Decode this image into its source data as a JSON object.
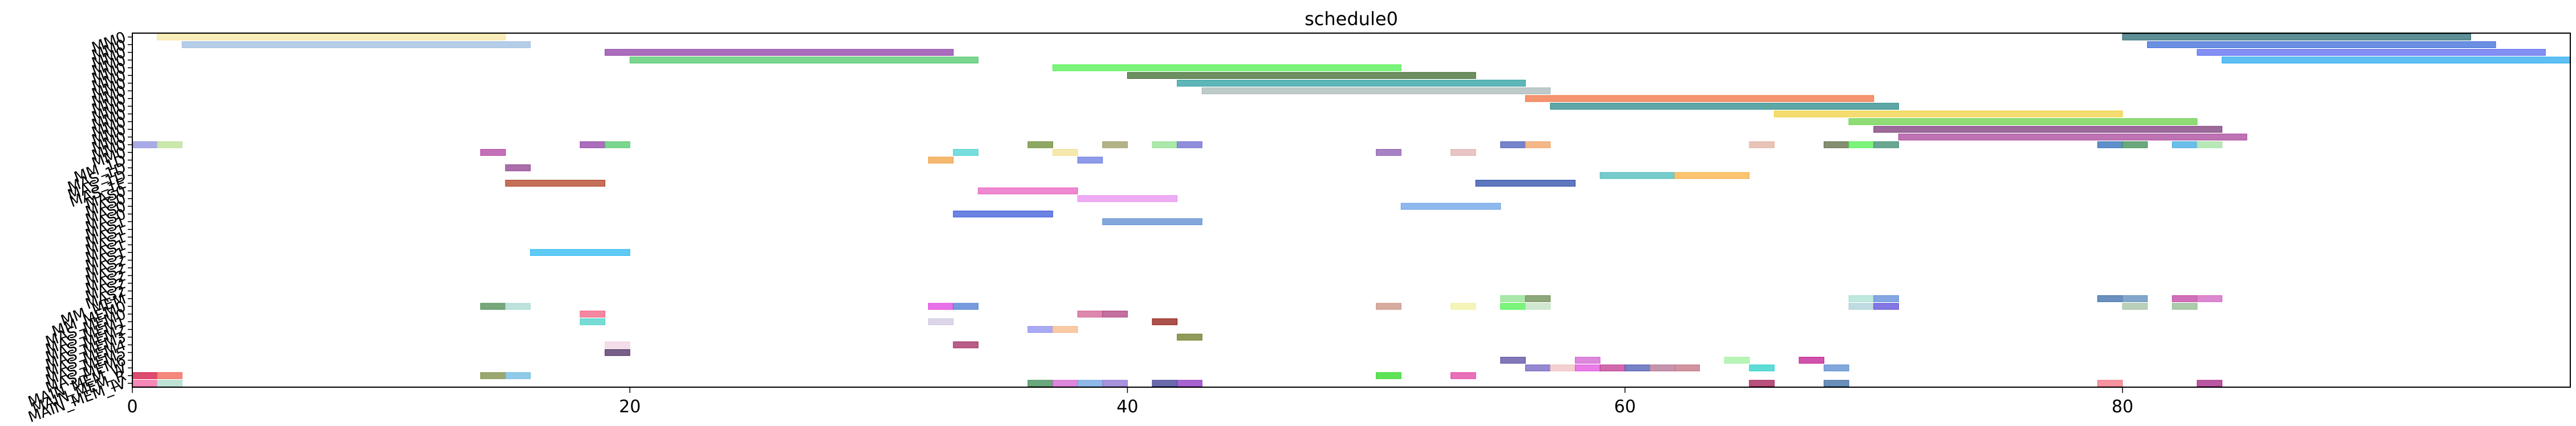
{
  "chart_data": {
    "type": "gantt",
    "title": "schedule0",
    "xlabel": "",
    "ylabel": "",
    "xlim": [
      0,
      98
    ],
    "xticks": [
      0,
      20,
      40,
      60,
      80
    ],
    "grid": false,
    "rows": [
      "MM0",
      "MM0",
      "MM0",
      "MM0",
      "MM0",
      "MM0",
      "MM0",
      "MM0",
      "MM0",
      "MM0",
      "MM0",
      "MM0",
      "MM0",
      "MM0",
      "MM0",
      "MM0",
      "MM_1D",
      "MAS_1D",
      "MAS_1D",
      "MAS_1E",
      "MAS0",
      "MAS0",
      "MAS0",
      "MAS0",
      "MAS1",
      "MAS1",
      "MAS1",
      "MAS1",
      "MAS1",
      "MAS2",
      "MAS2",
      "MAS2",
      "MAS2",
      "MAS2",
      "MM_MEM",
      "MM_MEM0",
      "MAS_MEM0",
      "MAS_MEM1",
      "MAS_MEM2",
      "MAS_MEM3",
      "MAS_MEM4",
      "MAS_MEM5",
      "MAS_MEM6",
      "MAIN_MEM_W",
      "MAIN_MEM_R",
      "MAIN_MEM_IV"
    ],
    "tasks": [
      {
        "row": 0,
        "start": 1,
        "end": 15,
        "color": "#f5e6a0"
      },
      {
        "row": 1,
        "start": 2,
        "end": 16,
        "color": "#9dbce0"
      },
      {
        "row": 2,
        "start": 19,
        "end": 33,
        "color": "#8e3ea6"
      },
      {
        "row": 3,
        "start": 20,
        "end": 34,
        "color": "#4fc86a"
      },
      {
        "row": 4,
        "start": 37,
        "end": 51,
        "color": "#4ff04f"
      },
      {
        "row": 5,
        "start": 40,
        "end": 54,
        "color": "#3e6a2c"
      },
      {
        "row": 6,
        "start": 42,
        "end": 56,
        "color": "#2a9ea0"
      },
      {
        "row": 7,
        "start": 43,
        "end": 57,
        "color": "#a8b8b8"
      },
      {
        "row": 8,
        "start": 56,
        "end": 70,
        "color": "#f07040"
      },
      {
        "row": 9,
        "start": 57,
        "end": 71,
        "color": "#2a8a88"
      },
      {
        "row": 10,
        "start": 66,
        "end": 80,
        "color": "#f0d040"
      },
      {
        "row": 11,
        "start": 69,
        "end": 83,
        "color": "#6ad04a"
      },
      {
        "row": 12,
        "start": 70,
        "end": 84,
        "color": "#7a3a78"
      },
      {
        "row": 13,
        "start": 71,
        "end": 85,
        "color": "#a8449a"
      },
      {
        "row": 0,
        "start": 80,
        "end": 94,
        "color": "#2a6a70"
      },
      {
        "row": 1,
        "start": 81,
        "end": 95,
        "color": "#3a6ad8"
      },
      {
        "row": 2,
        "start": 83,
        "end": 97,
        "color": "#5a6af0"
      },
      {
        "row": 3,
        "start": 84,
        "end": 98,
        "color": "#2aa8f0"
      },
      {
        "row": 14,
        "start": 0,
        "end": 1,
        "color": "#8e8ee0"
      },
      {
        "row": 14,
        "start": 1,
        "end": 2,
        "color": "#b8e090"
      },
      {
        "row": 14,
        "start": 18,
        "end": 19,
        "color": "#8e3ea6"
      },
      {
        "row": 14,
        "start": 19,
        "end": 20,
        "color": "#4fc86a"
      },
      {
        "row": 14,
        "start": 36,
        "end": 37,
        "color": "#6a8a30"
      },
      {
        "row": 14,
        "start": 39,
        "end": 40,
        "color": "#9a9a60"
      },
      {
        "row": 14,
        "start": 41,
        "end": 42,
        "color": "#8ee08e"
      },
      {
        "row": 14,
        "start": 42,
        "end": 43,
        "color": "#6a6ad0"
      },
      {
        "row": 14,
        "start": 55,
        "end": 56,
        "color": "#4a5ab8"
      },
      {
        "row": 14,
        "start": 56,
        "end": 57,
        "color": "#f0a060"
      },
      {
        "row": 14,
        "start": 65,
        "end": 66,
        "color": "#e0b0a0"
      },
      {
        "row": 14,
        "start": 68,
        "end": 69,
        "color": "#5a6a40"
      },
      {
        "row": 14,
        "start": 69,
        "end": 70,
        "color": "#4ff04f"
      },
      {
        "row": 14,
        "start": 70,
        "end": 71,
        "color": "#3a8a70"
      },
      {
        "row": 14,
        "start": 79,
        "end": 80,
        "color": "#2a6ab8"
      },
      {
        "row": 14,
        "start": 80,
        "end": 81,
        "color": "#3a8a50"
      },
      {
        "row": 14,
        "start": 82,
        "end": 83,
        "color": "#3aa8e0"
      },
      {
        "row": 14,
        "start": 83,
        "end": 84,
        "color": "#a0e0a0"
      },
      {
        "row": 15,
        "start": 14,
        "end": 15,
        "color": "#b040a0"
      },
      {
        "row": 15,
        "start": 33,
        "end": 34,
        "color": "#4ad0d0"
      },
      {
        "row": 15,
        "start": 37,
        "end": 38,
        "color": "#f0e090"
      },
      {
        "row": 15,
        "start": 50,
        "end": 51,
        "color": "#8a5ab0"
      },
      {
        "row": 15,
        "start": 53,
        "end": 54,
        "color": "#e0b0b0"
      },
      {
        "row": 16,
        "start": 32,
        "end": 33,
        "color": "#f0a040"
      },
      {
        "row": 16,
        "start": 38,
        "end": 39,
        "color": "#6a7ae0"
      },
      {
        "row": 17,
        "start": 15,
        "end": 16,
        "color": "#8e3e8e"
      },
      {
        "row": 18,
        "start": 59,
        "end": 62,
        "color": "#4ababa"
      },
      {
        "row": 18,
        "start": 62,
        "end": 65,
        "color": "#f8b040"
      },
      {
        "row": 19,
        "start": 15,
        "end": 19,
        "color": "#b04020"
      },
      {
        "row": 19,
        "start": 54,
        "end": 58,
        "color": "#2a4aa8"
      },
      {
        "row": 20,
        "start": 34,
        "end": 38,
        "color": "#e860c0"
      },
      {
        "row": 21,
        "start": 38,
        "end": 42,
        "color": "#e890f0"
      },
      {
        "row": 22,
        "start": 51,
        "end": 55,
        "color": "#6aa0e8"
      },
      {
        "row": 23,
        "start": 33,
        "end": 37,
        "color": "#3a5ad8"
      },
      {
        "row": 24,
        "start": 39,
        "end": 43,
        "color": "#5a8ad0"
      },
      {
        "row": 28,
        "start": 16,
        "end": 20,
        "color": "#2ab8f0"
      },
      {
        "row": 34,
        "start": 55,
        "end": 56,
        "color": "#8ee08e"
      },
      {
        "row": 34,
        "start": 56,
        "end": 57,
        "color": "#6a8a50"
      },
      {
        "row": 34,
        "start": 69,
        "end": 70,
        "color": "#a8e0d0"
      },
      {
        "row": 34,
        "start": 70,
        "end": 71,
        "color": "#5a8ad8"
      },
      {
        "row": 34,
        "start": 79,
        "end": 80,
        "color": "#3a6aa8"
      },
      {
        "row": 34,
        "start": 80,
        "end": 81,
        "color": "#5a8ab8"
      },
      {
        "row": 34,
        "start": 82,
        "end": 83,
        "color": "#c040a0"
      },
      {
        "row": 34,
        "start": 83,
        "end": 84,
        "color": "#d060c0"
      },
      {
        "row": 35,
        "start": 14,
        "end": 15,
        "color": "#4a8a50"
      },
      {
        "row": 35,
        "start": 15,
        "end": 16,
        "color": "#a8d8d0"
      },
      {
        "row": 35,
        "start": 32,
        "end": 33,
        "color": "#e040e0"
      },
      {
        "row": 35,
        "start": 33,
        "end": 34,
        "color": "#4a7ad0"
      },
      {
        "row": 35,
        "start": 50,
        "end": 51,
        "color": "#c89080"
      },
      {
        "row": 35,
        "start": 53,
        "end": 54,
        "color": "#f0f0a0"
      },
      {
        "row": 35,
        "start": 55,
        "end": 56,
        "color": "#4ff04f"
      },
      {
        "row": 35,
        "start": 56,
        "end": 57,
        "color": "#c0e0c0"
      },
      {
        "row": 35,
        "start": 69,
        "end": 70,
        "color": "#a8d0d8"
      },
      {
        "row": 35,
        "start": 70,
        "end": 71,
        "color": "#5a4ad8"
      },
      {
        "row": 35,
        "start": 80,
        "end": 81,
        "color": "#a0c0a0"
      },
      {
        "row": 35,
        "start": 82,
        "end": 83,
        "color": "#90b890"
      },
      {
        "row": 36,
        "start": 18,
        "end": 19,
        "color": "#f06080"
      },
      {
        "row": 36,
        "start": 38,
        "end": 39,
        "color": "#d06090"
      },
      {
        "row": 36,
        "start": 39,
        "end": 40,
        "color": "#b04080"
      },
      {
        "row": 37,
        "start": 18,
        "end": 19,
        "color": "#4ad0c8"
      },
      {
        "row": 37,
        "start": 32,
        "end": 33,
        "color": "#d0c8e0"
      },
      {
        "row": 37,
        "start": 41,
        "end": 42,
        "color": "#901810"
      },
      {
        "row": 38,
        "start": 36,
        "end": 37,
        "color": "#8e8ef0"
      },
      {
        "row": 38,
        "start": 37,
        "end": 38,
        "color": "#f8b888"
      },
      {
        "row": 39,
        "start": 42,
        "end": 43,
        "color": "#6a7a20"
      },
      {
        "row": 40,
        "start": 19,
        "end": 20,
        "color": "#f0d0e0"
      },
      {
        "row": 40,
        "start": 33,
        "end": 34,
        "color": "#a02860"
      },
      {
        "row": 41,
        "start": 19,
        "end": 20,
        "color": "#4a2a60"
      },
      {
        "row": 42,
        "start": 55,
        "end": 56,
        "color": "#5a4aa0"
      },
      {
        "row": 42,
        "start": 58,
        "end": 59,
        "color": "#d060d0"
      },
      {
        "row": 42,
        "start": 64,
        "end": 65,
        "color": "#a0f0a0"
      },
      {
        "row": 42,
        "start": 67,
        "end": 68,
        "color": "#c01890"
      },
      {
        "row": 43,
        "start": 56,
        "end": 57,
        "color": "#7060c0"
      },
      {
        "row": 43,
        "start": 57,
        "end": 58,
        "color": "#f0c0c0"
      },
      {
        "row": 43,
        "start": 58,
        "end": 59,
        "color": "#e050e0"
      },
      {
        "row": 43,
        "start": 59,
        "end": 60,
        "color": "#c03890"
      },
      {
        "row": 43,
        "start": 60,
        "end": 61,
        "color": "#4a58b0"
      },
      {
        "row": 43,
        "start": 61,
        "end": 62,
        "color": "#b07090"
      },
      {
        "row": 43,
        "start": 62,
        "end": 63,
        "color": "#c07080"
      },
      {
        "row": 43,
        "start": 65,
        "end": 66,
        "color": "#2ad0c8"
      },
      {
        "row": 43,
        "start": 68,
        "end": 69,
        "color": "#5a8ad0"
      },
      {
        "row": 44,
        "start": 0,
        "end": 1,
        "color": "#d01040"
      },
      {
        "row": 44,
        "start": 1,
        "end": 2,
        "color": "#f06050"
      },
      {
        "row": 44,
        "start": 14,
        "end": 15,
        "color": "#7a8a40"
      },
      {
        "row": 44,
        "start": 15,
        "end": 16,
        "color": "#6ab8e0"
      },
      {
        "row": 44,
        "start": 50,
        "end": 51,
        "color": "#2ad820"
      },
      {
        "row": 44,
        "start": 53,
        "end": 54,
        "color": "#e040a0"
      },
      {
        "row": 45,
        "start": 0,
        "end": 1,
        "color": "#f060a0"
      },
      {
        "row": 45,
        "start": 1,
        "end": 2,
        "color": "#a8d8c8"
      },
      {
        "row": 45,
        "start": 36,
        "end": 37,
        "color": "#3a8a50"
      },
      {
        "row": 45,
        "start": 37,
        "end": 38,
        "color": "#d060d0"
      },
      {
        "row": 45,
        "start": 38,
        "end": 39,
        "color": "#6aa0e0"
      },
      {
        "row": 45,
        "start": 39,
        "end": 40,
        "color": "#8a70d0"
      },
      {
        "row": 45,
        "start": 41,
        "end": 42,
        "color": "#3a3a90"
      },
      {
        "row": 45,
        "start": 42,
        "end": 43,
        "color": "#8a30c0"
      },
      {
        "row": 45,
        "start": 65,
        "end": 66,
        "color": "#a01850"
      },
      {
        "row": 45,
        "start": 68,
        "end": 69,
        "color": "#3a6aa0"
      },
      {
        "row": 45,
        "start": 79,
        "end": 80,
        "color": "#f07080"
      },
      {
        "row": 45,
        "start": 83,
        "end": 84,
        "color": "#a02080"
      }
    ]
  }
}
